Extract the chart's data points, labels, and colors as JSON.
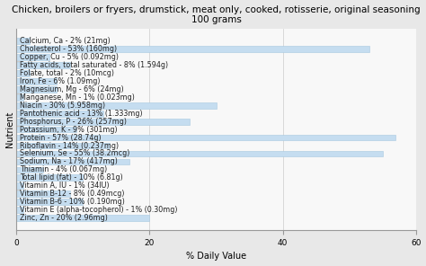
{
  "title": "Chicken, broilers or fryers, drumstick, meat only, cooked, rotisserie, original seasoning\n100 grams",
  "xlabel": "% Daily Value",
  "ylabel": "Nutrient",
  "nutrients": [
    {
      "label": "Calcium, Ca - 2% (21mg)",
      "value": 2
    },
    {
      "label": "Cholesterol - 53% (160mg)",
      "value": 53
    },
    {
      "label": "Copper, Cu - 5% (0.092mg)",
      "value": 5
    },
    {
      "label": "Fatty acids, total saturated - 8% (1.594g)",
      "value": 8
    },
    {
      "label": "Folate, total - 2% (10mcg)",
      "value": 2
    },
    {
      "label": "Iron, Fe - 6% (1.09mg)",
      "value": 6
    },
    {
      "label": "Magnesium, Mg - 6% (24mg)",
      "value": 6
    },
    {
      "label": "Manganese, Mn - 1% (0.023mg)",
      "value": 1
    },
    {
      "label": "Niacin - 30% (5.958mg)",
      "value": 30
    },
    {
      "label": "Pantothenic acid - 13% (1.333mg)",
      "value": 13
    },
    {
      "label": "Phosphorus, P - 26% (257mg)",
      "value": 26
    },
    {
      "label": "Potassium, K - 9% (301mg)",
      "value": 9
    },
    {
      "label": "Protein - 57% (28.74g)",
      "value": 57
    },
    {
      "label": "Riboflavin - 14% (0.237mg)",
      "value": 14
    },
    {
      "label": "Selenium, Se - 55% (38.2mcg)",
      "value": 55
    },
    {
      "label": "Sodium, Na - 17% (417mg)",
      "value": 17
    },
    {
      "label": "Thiamin - 4% (0.067mg)",
      "value": 4
    },
    {
      "label": "Total lipid (fat) - 10% (6.81g)",
      "value": 10
    },
    {
      "label": "Vitamin A, IU - 1% (34IU)",
      "value": 1
    },
    {
      "label": "Vitamin B-12 - 8% (0.49mcg)",
      "value": 8
    },
    {
      "label": "Vitamin B-6 - 10% (0.190mg)",
      "value": 10
    },
    {
      "label": "Vitamin E (alpha-tocopherol) - 1% (0.30mg)",
      "value": 1
    },
    {
      "label": "Zinc, Zn - 20% (2.96mg)",
      "value": 20
    }
  ],
  "bar_color": "#c5ddf0",
  "bar_edge_color": "#a8c8e0",
  "background_color": "#e8e8e8",
  "plot_background": "#f8f8f8",
  "xlim": [
    0,
    60
  ],
  "xticks": [
    0,
    20,
    40,
    60
  ],
  "title_fontsize": 7.5,
  "label_fontsize": 5.8,
  "axis_label_fontsize": 7,
  "tick_fontsize": 6.5
}
